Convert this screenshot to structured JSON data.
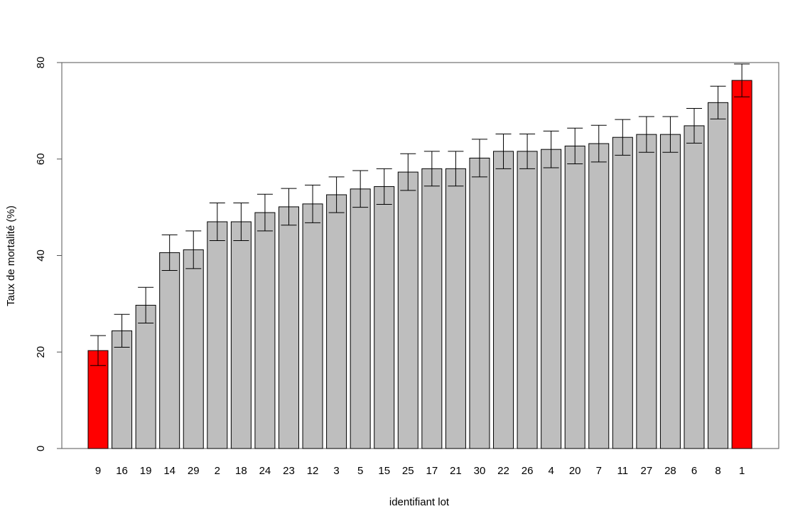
{
  "chart_data": {
    "type": "bar",
    "xlabel": "identifiant lot",
    "ylabel": "Taux de mortalité (%)",
    "categories": [
      "9",
      "16",
      "19",
      "14",
      "29",
      "2",
      "18",
      "24",
      "23",
      "12",
      "3",
      "5",
      "15",
      "25",
      "17",
      "21",
      "30",
      "22",
      "26",
      "4",
      "20",
      "7",
      "11",
      "27",
      "28",
      "6",
      "8",
      "1"
    ],
    "values": [
      20.3,
      24.4,
      29.7,
      40.6,
      41.2,
      47.0,
      47.0,
      48.9,
      50.1,
      50.7,
      52.6,
      53.8,
      54.3,
      57.3,
      58.0,
      58.0,
      60.2,
      61.6,
      61.6,
      62.0,
      62.7,
      63.2,
      64.5,
      65.1,
      65.1,
      66.9,
      71.7,
      76.3
    ],
    "errors": [
      3.1,
      3.4,
      3.7,
      3.7,
      3.9,
      3.9,
      3.9,
      3.8,
      3.8,
      3.9,
      3.7,
      3.8,
      3.7,
      3.8,
      3.6,
      3.6,
      3.9,
      3.6,
      3.6,
      3.8,
      3.7,
      3.8,
      3.7,
      3.7,
      3.7,
      3.6,
      3.4,
      3.4
    ],
    "colors": [
      "#ff0000",
      "#bebebe",
      "#bebebe",
      "#bebebe",
      "#bebebe",
      "#bebebe",
      "#bebebe",
      "#bebebe",
      "#bebebe",
      "#bebebe",
      "#bebebe",
      "#bebebe",
      "#bebebe",
      "#bebebe",
      "#bebebe",
      "#bebebe",
      "#bebebe",
      "#bebebe",
      "#bebebe",
      "#bebebe",
      "#bebebe",
      "#bebebe",
      "#bebebe",
      "#bebebe",
      "#bebebe",
      "#bebebe",
      "#bebebe",
      "#ff0000"
    ],
    "ylim": [
      0,
      80
    ],
    "yticks": [
      0,
      20,
      40,
      60,
      80
    ]
  }
}
